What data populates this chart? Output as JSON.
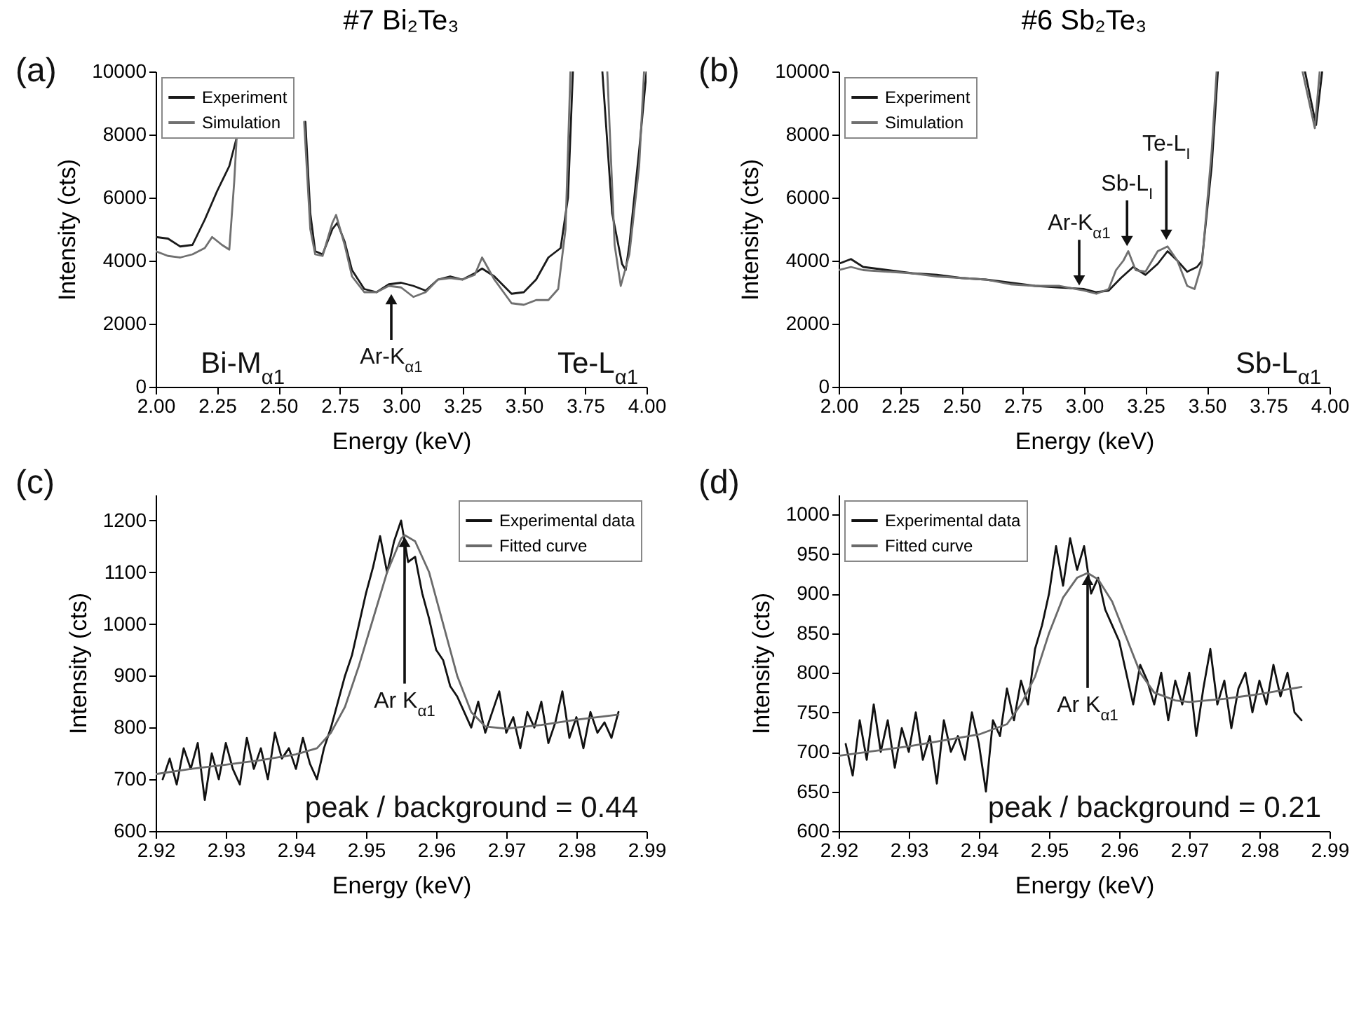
{
  "chart_data": [
    {
      "type": "line",
      "title": "#7 Bi₂Te₃",
      "subtitle": "(a)",
      "xlabel": "Energy (keV)",
      "ylabel": "Intensity (cts)",
      "xlim": [
        2.0,
        4.0
      ],
      "ylim": [
        0,
        10000
      ],
      "xticks": [
        {
          "value": 2.0,
          "label": "2.00"
        },
        {
          "value": 2.25,
          "label": "2.25"
        },
        {
          "value": 2.5,
          "label": "2.50"
        },
        {
          "value": 2.75,
          "label": "2.75"
        },
        {
          "value": 3.0,
          "label": "3.00"
        },
        {
          "value": 3.25,
          "label": "3.25"
        },
        {
          "value": 3.5,
          "label": "3.50"
        },
        {
          "value": 3.75,
          "label": "3.75"
        },
        {
          "value": 4.0,
          "label": "4.00"
        }
      ],
      "yticks": [
        0,
        2000,
        4000,
        6000,
        8000,
        10000
      ],
      "grid": false,
      "legend": "top left",
      "series": [
        {
          "name": "Experiment",
          "color": "#1a1a1a",
          "x": [
            2.0,
            2.05,
            2.1,
            2.15,
            2.2,
            2.25,
            2.3,
            2.32,
            2.33,
            2.335,
            2.61,
            2.63,
            2.65,
            2.68,
            2.72,
            2.74,
            2.77,
            2.8,
            2.85,
            2.9,
            2.95,
            3.0,
            3.05,
            3.1,
            3.15,
            3.2,
            3.25,
            3.3,
            3.33,
            3.38,
            3.45,
            3.5,
            3.55,
            3.6,
            3.65,
            3.68,
            3.7,
            3.76,
            3.82,
            3.86,
            3.9,
            3.915,
            3.93,
            3.97,
            4.0
          ],
          "values": [
            4750,
            4700,
            4450,
            4500,
            5300,
            6200,
            7000,
            7600,
            7900,
            null,
            8400,
            5500,
            4300,
            4200,
            5000,
            5200,
            4600,
            3700,
            3100,
            3000,
            3250,
            3300,
            3200,
            3050,
            3400,
            3500,
            3400,
            3600,
            3750,
            3500,
            2950,
            3000,
            3400,
            4100,
            4400,
            6000,
            10000,
            null,
            10000,
            5500,
            3900,
            3700,
            4500,
            7500,
            10000
          ]
        },
        {
          "name": "Simulation",
          "color": "#707070",
          "x": [
            2.0,
            2.05,
            2.1,
            2.15,
            2.2,
            2.23,
            2.27,
            2.3,
            2.32,
            2.33,
            2.335,
            2.605,
            2.63,
            2.65,
            2.68,
            2.72,
            2.735,
            2.77,
            2.8,
            2.85,
            2.9,
            2.95,
            3.0,
            3.05,
            3.1,
            3.15,
            3.2,
            3.25,
            3.3,
            3.33,
            3.38,
            3.45,
            3.5,
            3.55,
            3.6,
            3.64,
            3.67,
            3.69,
            3.76,
            3.84,
            3.87,
            3.895,
            3.93,
            3.97,
            3.99
          ],
          "values": [
            4300,
            4150,
            4100,
            4200,
            4400,
            4750,
            4500,
            4350,
            6500,
            7900,
            null,
            8400,
            5000,
            4200,
            4150,
            5200,
            5450,
            4500,
            3500,
            3000,
            3000,
            3200,
            3150,
            2850,
            3000,
            3400,
            3450,
            3400,
            3550,
            4100,
            3400,
            2650,
            2600,
            2750,
            2750,
            3100,
            5000,
            10000,
            null,
            10000,
            4500,
            3200,
            4200,
            7000,
            10000
          ]
        }
      ],
      "annotations": [
        "Bi-M$_{α1}$",
        {
          "text": "Ar-K$_{α1}$",
          "x": 2.96,
          "y": 3000
        },
        "Te-L$_{α1}$"
      ]
    },
    {
      "type": "line",
      "title": "#6 Sb₂Te₃",
      "subtitle": "(b)",
      "xlabel": "Energy (keV)",
      "ylabel": "Intensity (cts)",
      "xlim": [
        2.0,
        4.0
      ],
      "ylim": [
        0,
        10000
      ],
      "xticks": [
        {
          "value": 2.0,
          "label": "2.00"
        },
        {
          "value": 2.25,
          "label": "2.25"
        },
        {
          "value": 2.5,
          "label": "2.50"
        },
        {
          "value": 2.75,
          "label": "2.75"
        },
        {
          "value": 3.0,
          "label": "3.00"
        },
        {
          "value": 3.25,
          "label": "3.25"
        },
        {
          "value": 3.5,
          "label": "3.50"
        },
        {
          "value": 3.75,
          "label": "3.75"
        },
        {
          "value": 4.0,
          "label": "4.00"
        }
      ],
      "yticks": [
        0,
        2000,
        4000,
        6000,
        8000,
        10000
      ],
      "grid": false,
      "legend": "top left",
      "series": [
        {
          "name": "Experiment",
          "color": "#1a1a1a",
          "x": [
            2.0,
            2.05,
            2.1,
            2.2,
            2.3,
            2.4,
            2.5,
            2.6,
            2.7,
            2.8,
            2.9,
            3.0,
            3.05,
            3.1,
            3.15,
            3.2,
            3.25,
            3.3,
            3.34,
            3.38,
            3.42,
            3.46,
            3.48,
            3.52,
            3.545,
            3.7,
            3.9,
            3.945,
            3.97
          ],
          "values": [
            3900,
            4050,
            3800,
            3700,
            3600,
            3550,
            3450,
            3400,
            3300,
            3200,
            3150,
            3100,
            3000,
            3050,
            3450,
            3800,
            3550,
            3900,
            4300,
            4000,
            3650,
            3800,
            4000,
            7000,
            10000,
            null,
            10000,
            8300,
            10000
          ]
        },
        {
          "name": "Simulation",
          "color": "#707070",
          "x": [
            2.0,
            2.05,
            2.1,
            2.2,
            2.3,
            2.4,
            2.5,
            2.6,
            2.7,
            2.8,
            2.9,
            3.0,
            3.05,
            3.1,
            3.13,
            3.16,
            3.18,
            3.21,
            3.25,
            3.3,
            3.34,
            3.38,
            3.42,
            3.45,
            3.48,
            3.52,
            3.54,
            3.7,
            3.89,
            3.94,
            3.96
          ],
          "values": [
            3700,
            3800,
            3700,
            3650,
            3600,
            3500,
            3450,
            3400,
            3250,
            3200,
            3200,
            3050,
            2950,
            3100,
            3700,
            4000,
            4300,
            3700,
            3650,
            4300,
            4450,
            4000,
            3200,
            3100,
            3900,
            7500,
            10000,
            null,
            10000,
            8200,
            10000
          ]
        }
      ],
      "annotations": [
        {
          "text": "Ar-K$_{α1}$",
          "x": 2.98,
          "y": 3150
        },
        {
          "text": "Sb-L$_{I}$",
          "x": 3.175,
          "y": 4400
        },
        {
          "text": "Te-L$_{I}$",
          "x": 3.335,
          "y": 4600
        },
        "Sb-L$_{α1}$"
      ]
    },
    {
      "type": "line",
      "subtitle": "(c)",
      "xlabel": "Energy (keV)",
      "ylabel": "Intensity (cts)",
      "xlim": [
        2.92,
        2.99
      ],
      "ylim": [
        600,
        1250
      ],
      "xticks": [
        2.92,
        2.93,
        2.94,
        2.95,
        2.96,
        2.97,
        2.98,
        2.99
      ],
      "yticks": [
        600,
        700,
        800,
        900,
        1000,
        1100,
        1200
      ],
      "grid": false,
      "legend": "top right",
      "series": [
        {
          "name": "Experimental data",
          "color": "#111111",
          "x": [
            2.921,
            2.922,
            2.923,
            2.924,
            2.925,
            2.926,
            2.927,
            2.928,
            2.929,
            2.93,
            2.931,
            2.932,
            2.933,
            2.934,
            2.935,
            2.936,
            2.937,
            2.938,
            2.939,
            2.94,
            2.941,
            2.942,
            2.943,
            2.944,
            2.945,
            2.946,
            2.947,
            2.948,
            2.949,
            2.95,
            2.951,
            2.952,
            2.953,
            2.954,
            2.955,
            2.956,
            2.957,
            2.958,
            2.959,
            2.96,
            2.961,
            2.962,
            2.963,
            2.964,
            2.965,
            2.966,
            2.967,
            2.968,
            2.969,
            2.97,
            2.971,
            2.972,
            2.973,
            2.974,
            2.975,
            2.976,
            2.977,
            2.978,
            2.979,
            2.98,
            2.981,
            2.982,
            2.983,
            2.984,
            2.985,
            2.986
          ],
          "values": [
            700,
            740,
            690,
            760,
            720,
            770,
            660,
            750,
            700,
            770,
            720,
            690,
            780,
            720,
            760,
            700,
            790,
            740,
            760,
            720,
            780,
            730,
            700,
            760,
            800,
            850,
            900,
            940,
            1000,
            1060,
            1110,
            1170,
            1100,
            1160,
            1200,
            1120,
            1130,
            1060,
            1010,
            950,
            930,
            880,
            860,
            830,
            800,
            850,
            790,
            830,
            870,
            790,
            820,
            760,
            830,
            800,
            850,
            770,
            810,
            870,
            780,
            820,
            760,
            830,
            790,
            810,
            780,
            830
          ]
        },
        {
          "name": "Fitted curve",
          "color": "#6a6a6a",
          "x": [
            2.92,
            2.925,
            2.93,
            2.935,
            2.94,
            2.943,
            2.945,
            2.947,
            2.949,
            2.951,
            2.953,
            2.955,
            2.9555,
            2.957,
            2.959,
            2.961,
            2.963,
            2.965,
            2.967,
            2.97,
            2.975,
            2.98,
            2.986
          ],
          "values": [
            710,
            720,
            728,
            737,
            748,
            760,
            790,
            840,
            920,
            1010,
            1100,
            1165,
            1172,
            1160,
            1100,
            1000,
            900,
            830,
            802,
            798,
            805,
            815,
            825
          ]
        }
      ],
      "annotations": [
        {
          "text": "Ar K$_{α1}$",
          "x": 2.9555,
          "y": 1172
        },
        "peak / background =  0.44"
      ]
    },
    {
      "type": "line",
      "subtitle": "(d)",
      "xlabel": "Energy (keV)",
      "ylabel": "Intensity (cts)",
      "xlim": [
        2.92,
        2.99
      ],
      "ylim": [
        600,
        1025
      ],
      "xticks": [
        2.92,
        2.93,
        2.94,
        2.95,
        2.96,
        2.97,
        2.98,
        2.99
      ],
      "yticks": [
        600,
        650,
        700,
        750,
        800,
        850,
        900,
        950,
        1000
      ],
      "grid": false,
      "legend": "top left",
      "series": [
        {
          "name": "Experimental data",
          "color": "#111111",
          "x": [
            2.921,
            2.922,
            2.923,
            2.924,
            2.925,
            2.926,
            2.927,
            2.928,
            2.929,
            2.93,
            2.931,
            2.932,
            2.933,
            2.934,
            2.935,
            2.936,
            2.937,
            2.938,
            2.939,
            2.94,
            2.941,
            2.942,
            2.943,
            2.944,
            2.945,
            2.946,
            2.947,
            2.948,
            2.949,
            2.95,
            2.951,
            2.952,
            2.953,
            2.954,
            2.955,
            2.956,
            2.957,
            2.958,
            2.959,
            2.96,
            2.961,
            2.962,
            2.963,
            2.964,
            2.965,
            2.966,
            2.967,
            2.968,
            2.969,
            2.97,
            2.971,
            2.972,
            2.973,
            2.974,
            2.975,
            2.976,
            2.977,
            2.978,
            2.979,
            2.98,
            2.981,
            2.982,
            2.983,
            2.984,
            2.985,
            2.986
          ],
          "values": [
            710,
            670,
            740,
            690,
            760,
            700,
            740,
            680,
            730,
            700,
            750,
            690,
            720,
            660,
            740,
            700,
            720,
            690,
            750,
            710,
            650,
            740,
            720,
            780,
            740,
            790,
            760,
            830,
            860,
            900,
            960,
            910,
            970,
            930,
            960,
            900,
            920,
            880,
            860,
            840,
            800,
            760,
            810,
            790,
            760,
            800,
            740,
            790,
            760,
            800,
            720,
            780,
            830,
            760,
            790,
            730,
            780,
            800,
            750,
            790,
            760,
            810,
            770,
            800,
            750,
            740
          ]
        },
        {
          "name": "Fitted curve",
          "color": "#6a6a6a",
          "x": [
            2.92,
            2.93,
            2.94,
            2.944,
            2.946,
            2.948,
            2.95,
            2.952,
            2.954,
            2.9555,
            2.957,
            2.959,
            2.961,
            2.963,
            2.965,
            2.968,
            2.97,
            2.975,
            2.98,
            2.986
          ],
          "values": [
            695,
            707,
            722,
            735,
            760,
            795,
            850,
            895,
            920,
            926,
            918,
            890,
            845,
            800,
            775,
            765,
            763,
            767,
            773,
            782
          ]
        }
      ],
      "annotations": [
        {
          "text": "Ar K$_{α1}$",
          "x": 2.9555,
          "y": 926
        },
        "peak / background =  0.21"
      ]
    }
  ]
}
